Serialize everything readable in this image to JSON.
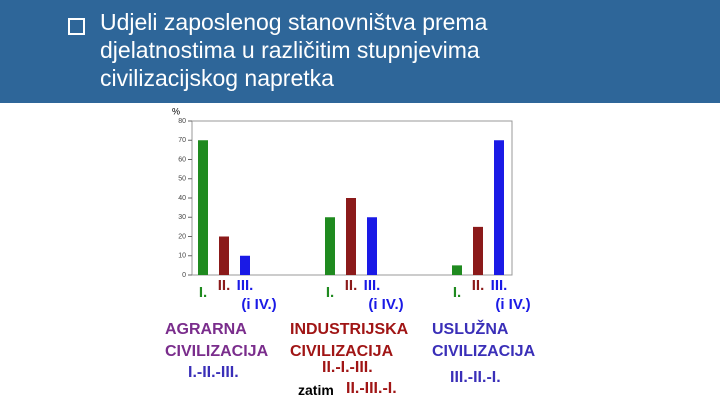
{
  "header": {
    "title": "Udjeli zaposlenog stanovništva prema djelatnostima u različitim stupnjevima civilizacijskog napretka"
  },
  "chart_data": {
    "type": "bar",
    "ylabel": "%",
    "categories": [
      "AGRARNA CIVILIZACIJA",
      "INDUSTRIJSKA CIVILIZACIJA",
      "USLUŽNA CIVILIZACIJA"
    ],
    "category_colors": [
      "#7a2d8c",
      "#a01515",
      "#3a2fb8"
    ],
    "series": [
      {
        "name": "I.",
        "color": "#1f8a1f",
        "values": [
          70,
          30,
          5
        ]
      },
      {
        "name": "II.",
        "color": "#8b1a1a",
        "values": [
          20,
          40,
          25
        ]
      },
      {
        "name": "III.",
        "color": "#1a1ae6",
        "values": [
          10,
          30,
          70
        ]
      }
    ],
    "note": "(i IV.)",
    "ylim": [
      0,
      80
    ],
    "yticks": [
      0,
      10,
      20,
      30,
      40,
      50,
      60,
      70,
      80
    ]
  },
  "orders": [
    {
      "text": "I.-II.-III."
    },
    {
      "text": "II.-I.-III.",
      "prefix": "zatim",
      "text2": "II.-III.-I."
    },
    {
      "text": "III.-II.-I."
    }
  ]
}
